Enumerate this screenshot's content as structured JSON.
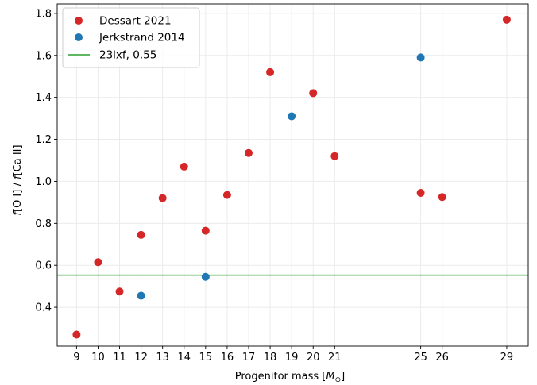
{
  "chart_data": {
    "type": "scatter",
    "xlabel": "Progenitor mass [",
    "xlabel_unit": "M",
    "xlabel_unit_sub": "⊙",
    "xlabel_close": "]",
    "ylabel_parts": [
      "f",
      "[O I] / ",
      "f",
      "[Ca II]"
    ],
    "x_ticks": [
      9,
      10,
      11,
      12,
      13,
      14,
      15,
      16,
      17,
      18,
      19,
      20,
      21,
      25,
      26,
      29
    ],
    "y_ticks": [
      0.4,
      0.6,
      0.8,
      1.0,
      1.2,
      1.4,
      1.6,
      1.8
    ],
    "y_tick_labels": [
      "0.4",
      "0.6",
      "0.8",
      "1.0",
      "1.2",
      "1.4",
      "1.6",
      "1.8"
    ],
    "xlim": [
      8.1,
      30.0
    ],
    "ylim": [
      0.215,
      1.845
    ],
    "grid": true,
    "legend_position": "top-left",
    "series": [
      {
        "name": "Dessart 2021",
        "color": "#d62728",
        "marker": "circle",
        "points": [
          {
            "x": 9,
            "y": 0.27
          },
          {
            "x": 10,
            "y": 0.615
          },
          {
            "x": 11,
            "y": 0.475
          },
          {
            "x": 12,
            "y": 0.745
          },
          {
            "x": 13,
            "y": 0.92
          },
          {
            "x": 14,
            "y": 1.07
          },
          {
            "x": 15,
            "y": 0.765
          },
          {
            "x": 16,
            "y": 0.935
          },
          {
            "x": 17,
            "y": 1.135
          },
          {
            "x": 18,
            "y": 1.52
          },
          {
            "x": 20,
            "y": 1.42
          },
          {
            "x": 21,
            "y": 1.12
          },
          {
            "x": 25,
            "y": 0.945
          },
          {
            "x": 26,
            "y": 0.925
          },
          {
            "x": 29,
            "y": 1.77
          }
        ]
      },
      {
        "name": "Jerkstrand 2014",
        "color": "#1f77b4",
        "marker": "circle",
        "points": [
          {
            "x": 12,
            "y": 0.455
          },
          {
            "x": 15,
            "y": 0.545
          },
          {
            "x": 19,
            "y": 1.31
          },
          {
            "x": 25,
            "y": 1.59
          }
        ]
      }
    ],
    "hlines": [
      {
        "name": "23ixf, 0.55",
        "y": 0.553,
        "color": "#2ca02c"
      }
    ]
  }
}
